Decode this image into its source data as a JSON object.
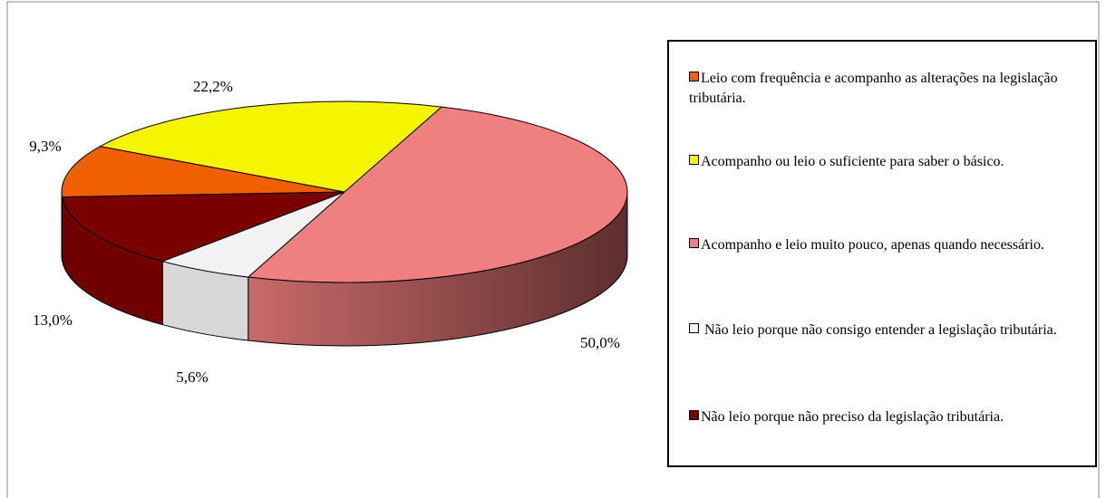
{
  "chart_data": {
    "type": "pie3d",
    "categories": [
      "Leio com frequência e acompanho as alterações na legislação tributária.",
      "Acompanho ou leio o suficiente para saber o básico.",
      "Acompanho e leio muito pouco, apenas quando necessário.",
      " Não leio porque não consigo entender a legislação tributária.",
      "Não leio porque não preciso da legislação tributária."
    ],
    "values": [
      9.3,
      22.2,
      50.0,
      5.6,
      13.0
    ],
    "value_labels": [
      "9,3%",
      "22,2%",
      "50,0%",
      "5,6%",
      "13,0%"
    ],
    "colors": [
      "#f06000",
      "#f5f500",
      "#f08080",
      "#f2f2f2",
      "#7a0000"
    ]
  }
}
